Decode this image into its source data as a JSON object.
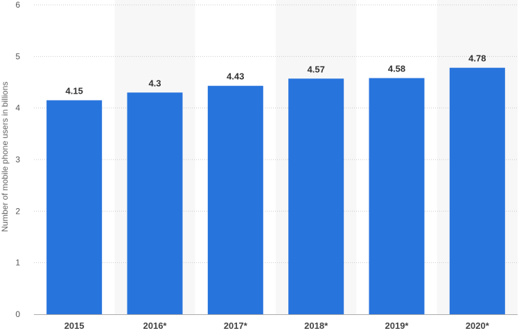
{
  "chart_data": {
    "type": "bar",
    "categories": [
      "2015",
      "2016*",
      "2017*",
      "2018*",
      "2019*",
      "2020*"
    ],
    "values": [
      4.15,
      4.3,
      4.43,
      4.57,
      4.58,
      4.78
    ],
    "value_labels": [
      "4.15",
      "4.3",
      "4.43",
      "4.57",
      "4.58",
      "4.78"
    ],
    "title": "",
    "xlabel": "",
    "ylabel": "Number of mobile phone users in billions",
    "ylim": [
      0,
      6
    ],
    "yticks": [
      "0",
      "1",
      "2",
      "3",
      "4",
      "5",
      "6"
    ],
    "grid": true,
    "bar_color": "#2874dd",
    "band_color": "#f7f7f7"
  }
}
